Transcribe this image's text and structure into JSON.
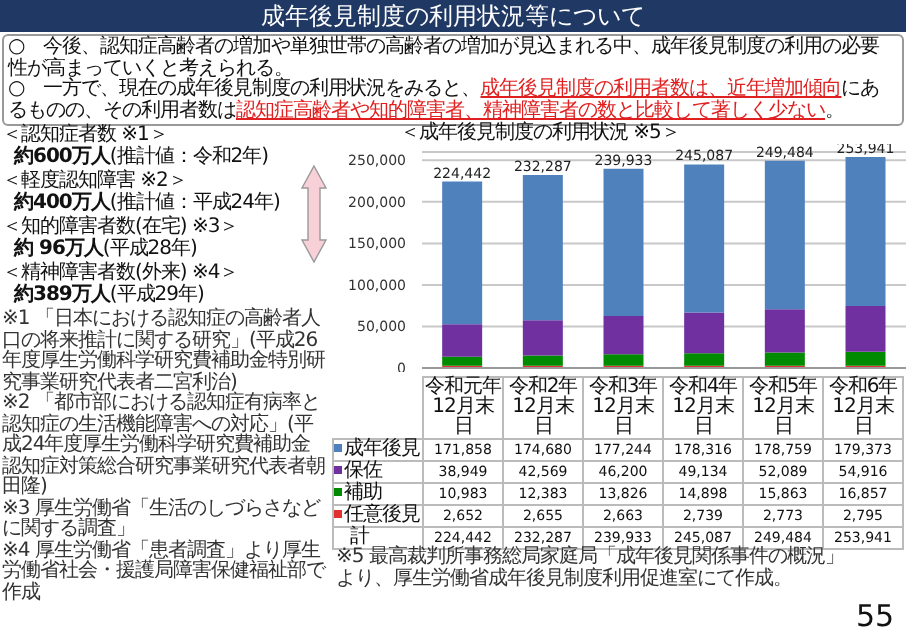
{
  "chart_data": {
    "type": "bar",
    "title": "成年後見制度の利用状況等について",
    "subtitle": "＜成年後見制度の利用状況 ※5＞",
    "categories": [
      "令和元年12月末日",
      "令和2年12月末日",
      "令和3年12月末日",
      "令和4年12月末日",
      "令和5年12月末日",
      "令和6年12月末日"
    ],
    "stacked": true,
    "legend": "bottom",
    "series": [
      {
        "name": "任意後見",
        "color": "#e03030",
        "values": [
          2652,
          2655,
          2663,
          2739,
          2773,
          2795
        ],
        "value_labels": [
          "2,652",
          "2,655",
          "2,663",
          "2,739",
          "2,773",
          "2,795"
        ]
      },
      {
        "name": "補助",
        "color": "#008a00",
        "values": [
          10983,
          12383,
          13826,
          14898,
          15863,
          16857
        ],
        "value_labels": [
          "10,983",
          "12,383",
          "13,826",
          "14,898",
          "15,863",
          "16,857"
        ]
      },
      {
        "name": "保佐",
        "color": "#7030a0",
        "values": [
          38949,
          42569,
          46200,
          49134,
          52089,
          54916
        ],
        "value_labels": [
          "38,949",
          "42,569",
          "46,200",
          "49,134",
          "52,089",
          "54,916"
        ]
      },
      {
        "name": "成年後見",
        "color": "#4f81bd",
        "values": [
          171858,
          174680,
          177244,
          178316,
          178759,
          179373
        ],
        "value_labels": [
          "171,858",
          "174,680",
          "177,244",
          "178,316",
          "178,759",
          "179,373"
        ]
      }
    ],
    "totals": [
      "224,442",
      "232,287",
      "239,933",
      "245,087",
      "249,484",
      "253,941"
    ],
    "ylim": [
      0,
      260000
    ],
    "yticks": [
      {
        "value": 0,
        "label": "0"
      },
      {
        "value": 50000,
        "label": "50,000"
      },
      {
        "value": 100000,
        "label": "100,000"
      },
      {
        "value": 150000,
        "label": "150,000"
      },
      {
        "value": 200000,
        "label": "200,000"
      },
      {
        "value": 250000,
        "label": "250,000"
      }
    ],
    "grid": "y",
    "annotations": [
      "○　今後、認知症高齢者の増加や単独世帯の高齢者の増加が見込まれる中、成年後見制度の利用の必要性が高まっていくと考えられる。",
      "○　一方で、現在の成年後見制度の利用状況をみると、",
      "成年後見制度の利用者数は、近年増加傾向",
      "にあるものの、その利用者数は",
      "認知症高齢者や知的障害者、精神障害者の数と比較して著しく少ない",
      "。",
      "＜認知症者数 ※1＞",
      "約600万人",
      "(推計値：令和2年)",
      "＜軽度認知障害 ※2＞",
      "約400万人",
      "(推計値：平成24年)",
      "＜知的障害者数(在宅) ※3＞",
      "約 96万人",
      "(平成28年)",
      "＜精神障害者数(外来) ※4＞",
      "約389万人",
      "(平成29年)",
      "※1 「日本における認知症の高齢者人口の将来推計に関する研究」(平成26年度厚生労働科学研究費補助金特別研究事業研究代表者二宮利治)",
      "※2 「都市部における認知症有病率と認知症の生活機能障害への対応」(平成24年度厚生労働科学研究費補助金認知症対策総合研究事業研究代表者朝田隆)",
      "※3 厚生労働省「生活のしづらさなどに関する調査」",
      "※4 厚生労働省「患者調査」より厚生労働省社会・援護局障害保健福祉部で作成",
      "※5 最高裁判所事務総局家庭局「成年後見関係事件の概況」より、厚生労働省成年後見制度利用促進室にて作成。",
      "55",
      "計"
    ]
  }
}
